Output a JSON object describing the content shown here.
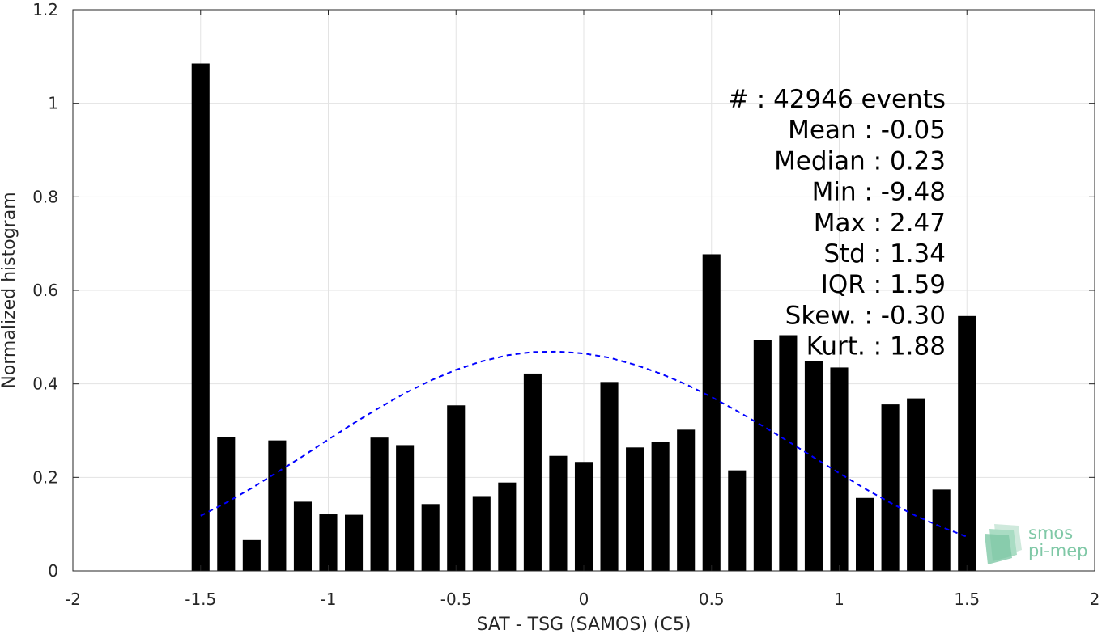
{
  "chart_data": {
    "type": "bar",
    "xlabel": "SAT - TSG (SAMOS) (C5)",
    "ylabel": "Normalized histogram",
    "xlim": [
      -2,
      2
    ],
    "ylim": [
      0,
      1.2
    ],
    "x_ticks": [
      "-2",
      "-1.5",
      "-1",
      "-0.5",
      "0",
      "0.5",
      "1",
      "1.5",
      "2"
    ],
    "y_ticks": [
      "0",
      "0.2",
      "0.4",
      "0.6",
      "0.8",
      "1",
      "1.2"
    ],
    "grid": true,
    "bar_color": "#000000",
    "fit_color": "#0000ff",
    "bars": {
      "x": [
        -1.5,
        -1.4,
        -1.3,
        -1.2,
        -1.1,
        -1.0,
        -0.9,
        -0.8,
        -0.7,
        -0.6,
        -0.5,
        -0.4,
        -0.3,
        -0.2,
        -0.1,
        0.0,
        0.1,
        0.2,
        0.3,
        0.4,
        0.5,
        0.6,
        0.7,
        0.8,
        0.9,
        1.0,
        1.1,
        1.2,
        1.3,
        1.4,
        1.5
      ],
      "values": [
        1.085,
        0.286,
        0.066,
        0.279,
        0.148,
        0.121,
        0.12,
        0.285,
        0.269,
        0.143,
        0.354,
        0.16,
        0.189,
        0.422,
        0.246,
        0.233,
        0.404,
        0.264,
        0.276,
        0.302,
        0.677,
        0.215,
        0.494,
        0.504,
        0.449,
        0.435,
        0.156,
        0.356,
        0.369,
        0.174,
        0.545
      ]
    },
    "fit_curve": {
      "style": "dashed",
      "x": [
        -1.5,
        -1.4,
        -1.3,
        -1.2,
        -1.1,
        -1.0,
        -0.9,
        -0.8,
        -0.7,
        -0.6,
        -0.5,
        -0.4,
        -0.3,
        -0.2,
        -0.1,
        0.0,
        0.1,
        0.2,
        0.3,
        0.4,
        0.5,
        0.6,
        0.7,
        0.8,
        0.9,
        1.0,
        1.1,
        1.2,
        1.3,
        1.4,
        1.5
      ],
      "y": [
        0.118,
        0.146,
        0.177,
        0.211,
        0.245,
        0.281,
        0.316,
        0.349,
        0.38,
        0.407,
        0.43,
        0.448,
        0.461,
        0.468,
        0.469,
        0.465,
        0.456,
        0.441,
        0.422,
        0.399,
        0.372,
        0.342,
        0.31,
        0.277,
        0.243,
        0.209,
        0.176,
        0.146,
        0.118,
        0.094,
        0.073
      ]
    },
    "stats": [
      "#   : 42946 events",
      "Mean : -0.05",
      "Median : 0.23",
      "Min : -9.48",
      "Max : 2.47",
      "Std : 1.34",
      "IQR : 1.59",
      "Skew. : -0.30",
      "Kurt. : 1.88"
    ]
  },
  "logo": {
    "line1": "smos",
    "line2": "pi-mep"
  }
}
